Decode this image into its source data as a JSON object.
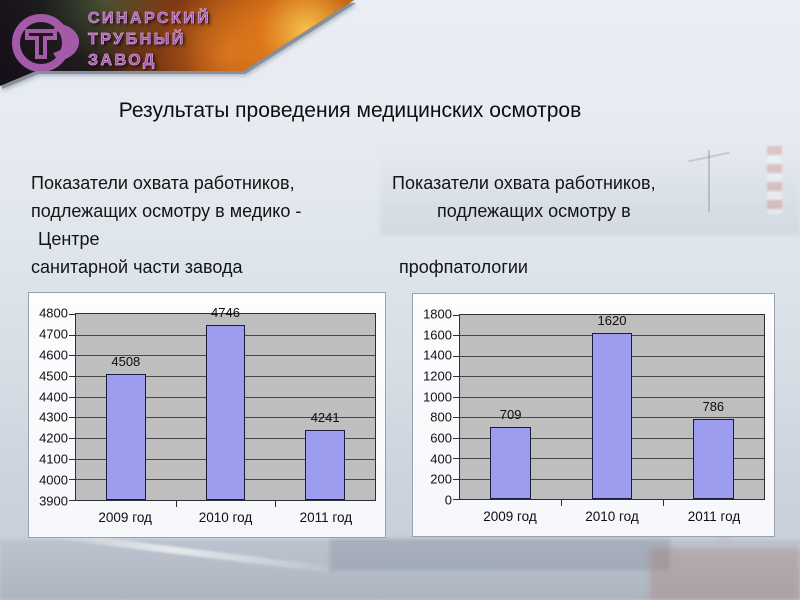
{
  "logo": {
    "company_lines": [
      "СИНАРСКИЙ",
      "ТРУБНЫЙ",
      "ЗАВОД"
    ],
    "emblem": "t-in-circle-icon",
    "text_color": "#a152a6"
  },
  "title": "Результаты проведения медицинских осмотров",
  "columns": {
    "left": {
      "lines": [
        "Показатели охвата работников,",
        "подлежащих осмотру в медико -",
        "Центре",
        "санитарной части завода"
      ]
    },
    "right": {
      "lines": [
        "Показатели охвата работников,",
        "подлежащих осмотру в",
        "",
        "профпатологии"
      ]
    }
  },
  "chart_data": [
    {
      "type": "bar",
      "categories": [
        "2009 год",
        "2010 год",
        "2011 год"
      ],
      "values": [
        4508,
        4746,
        4241
      ],
      "data_labels": [
        "4508",
        "4746",
        "4241"
      ],
      "ylim": [
        3900,
        4800
      ],
      "ystep": 100,
      "grid": true,
      "legend": "none",
      "bar_color": "#9d9df0",
      "plot_bg": "#bebebe"
    },
    {
      "type": "bar",
      "categories": [
        "2009 год",
        "2010 год",
        "2011 год"
      ],
      "values": [
        709,
        1620,
        786
      ],
      "data_labels": [
        "709",
        "1620",
        "786"
      ],
      "ylim": [
        0,
        1800
      ],
      "ystep": 200,
      "grid": true,
      "legend": "none",
      "bar_color": "#9d9df0",
      "plot_bg": "#bebebe"
    }
  ]
}
